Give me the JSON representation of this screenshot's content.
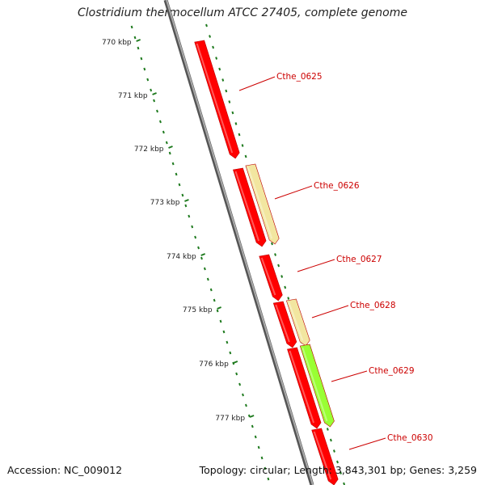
{
  "title": "Clostridium thermocellum ATCC 27405, complete genome",
  "footer": {
    "accession": "Accession: NC_009012",
    "summary": "Topology: circular; Length: 3,843,301 bp; Genes: 3,259"
  },
  "colors": {
    "backbone": "#888888",
    "tick": "#1e7a1e",
    "tick_label": "#222222",
    "gene_label": "#cc0000",
    "gene_red": "#ff0000",
    "gene_yellow": "#f2e6a0",
    "gene_green": "#99ff33"
  },
  "ruler": {
    "unit": "kbp",
    "labels": [
      "770 kbp",
      "771 kbp",
      "772 kbp",
      "773 kbp",
      "774 kbp",
      "775 kbp",
      "776 kbp",
      "777 kbp"
    ]
  },
  "genes": [
    {
      "label": "Cthe_0625",
      "color": "red"
    },
    {
      "label": "Cthe_0626",
      "color": "yellow"
    },
    {
      "label": "Cthe_0627",
      "color": "red"
    },
    {
      "label": "Cthe_0628",
      "color": "yellow"
    },
    {
      "label": "Cthe_0629",
      "color": "green"
    },
    {
      "label": "Cthe_0630",
      "color": "red"
    }
  ]
}
